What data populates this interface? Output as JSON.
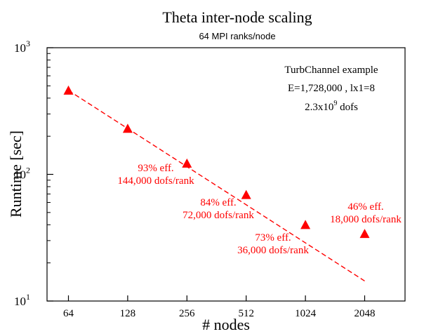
{
  "chart_data": {
    "type": "scatter",
    "title": "Theta inter-node scaling",
    "subtitle": "64 MPI ranks/node",
    "xlabel": "# nodes",
    "ylabel": "Runtime [sec]",
    "x_scale": "log2",
    "y_scale": "log10",
    "xlim": [
      45,
      3300
    ],
    "ylim": [
      10,
      1000
    ],
    "x_ticks": [
      "64",
      "128",
      "256",
      "512",
      "1024",
      "2048"
    ],
    "y_ticks": [
      {
        "value": 10,
        "base": "10",
        "exp": "1"
      },
      {
        "value": 100,
        "base": "10",
        "exp": "2"
      },
      {
        "value": 1000,
        "base": "10",
        "exp": "3"
      }
    ],
    "grid": false,
    "color": "#ff0000",
    "series": [
      {
        "marker": "triangle",
        "x": [
          64,
          128,
          256,
          512,
          1024,
          2048
        ],
        "y": [
          460,
          230,
          122,
          69,
          40,
          34
        ]
      }
    ],
    "ideal_line": {
      "style": "dashed",
      "x": [
        64,
        2048
      ],
      "y": [
        460,
        14.4
      ]
    },
    "info_box": {
      "line1": "TurbChannel example",
      "line2": "E=1,728,000 , lx1=8",
      "line3_base": "2.3x10",
      "line3_exp": "9",
      "line3_tail": " dofs"
    },
    "annotations": [
      {
        "line1": "93% eff.",
        "line2": "144,000 dofs/rank"
      },
      {
        "line1": "84% eff.",
        "line2": "72,000 dofs/rank"
      },
      {
        "line1": "73% eff.",
        "line2": "36,000 dofs/rank"
      },
      {
        "line1": "46% eff.",
        "line2": "18,000 dofs/rank"
      }
    ]
  }
}
